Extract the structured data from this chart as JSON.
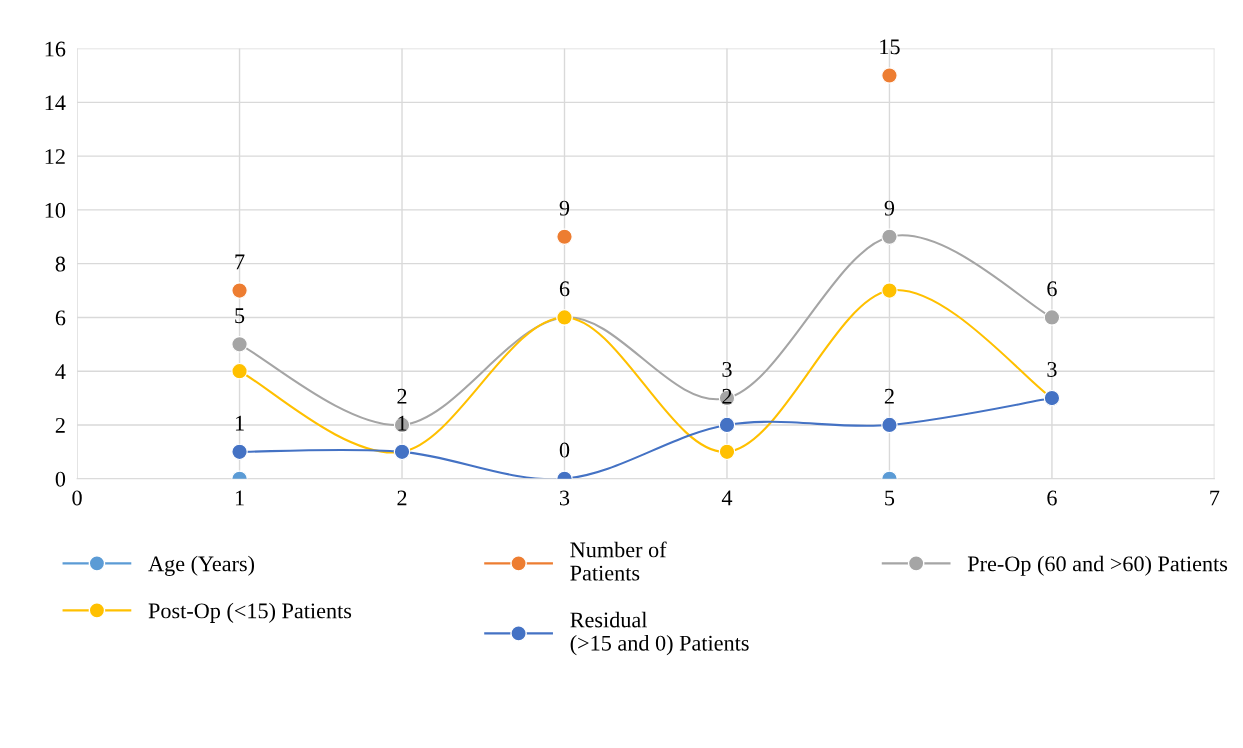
{
  "chart_data": {
    "type": "line",
    "xlim": [
      0,
      7
    ],
    "xticks": [
      0,
      1,
      2,
      3,
      4,
      5,
      6,
      7
    ],
    "ylim": [
      0,
      16
    ],
    "yticks": [
      0,
      2,
      4,
      6,
      8,
      10,
      12,
      14,
      16
    ],
    "grid": true,
    "legend": "bottom",
    "marker": "circle",
    "x": [
      1,
      2,
      3,
      4,
      5,
      6
    ],
    "series": [
      {
        "name": "Age (Years)",
        "type": "scatter",
        "color": "#5b9bd5",
        "values": [
          0,
          null,
          null,
          null,
          0,
          null
        ]
      },
      {
        "name": "Number of\nPatients",
        "type": "scatter",
        "color": "#ed7d31",
        "values": [
          7,
          null,
          9,
          null,
          15,
          null
        ],
        "value_labels": [
          "7",
          null,
          "9",
          null,
          "15",
          null
        ]
      },
      {
        "name": "Pre-Op (60 and >60) Patients",
        "color": "#a5a5a5",
        "values": [
          5,
          2,
          6,
          3,
          9,
          6
        ],
        "value_labels": [
          "5",
          "2",
          "6",
          "3",
          "9",
          "6"
        ]
      },
      {
        "name": "Post-Op (<15) Patients",
        "color": "#ffc000",
        "values": [
          4,
          1,
          6,
          1,
          7,
          3
        ]
      },
      {
        "name": "Residual\n(>15 and 0) Patients",
        "color": "#4472c4",
        "values": [
          1,
          1,
          0,
          2,
          2,
          3
        ],
        "value_labels": [
          "1",
          "1",
          "0",
          "2",
          "2",
          "3"
        ]
      }
    ]
  }
}
